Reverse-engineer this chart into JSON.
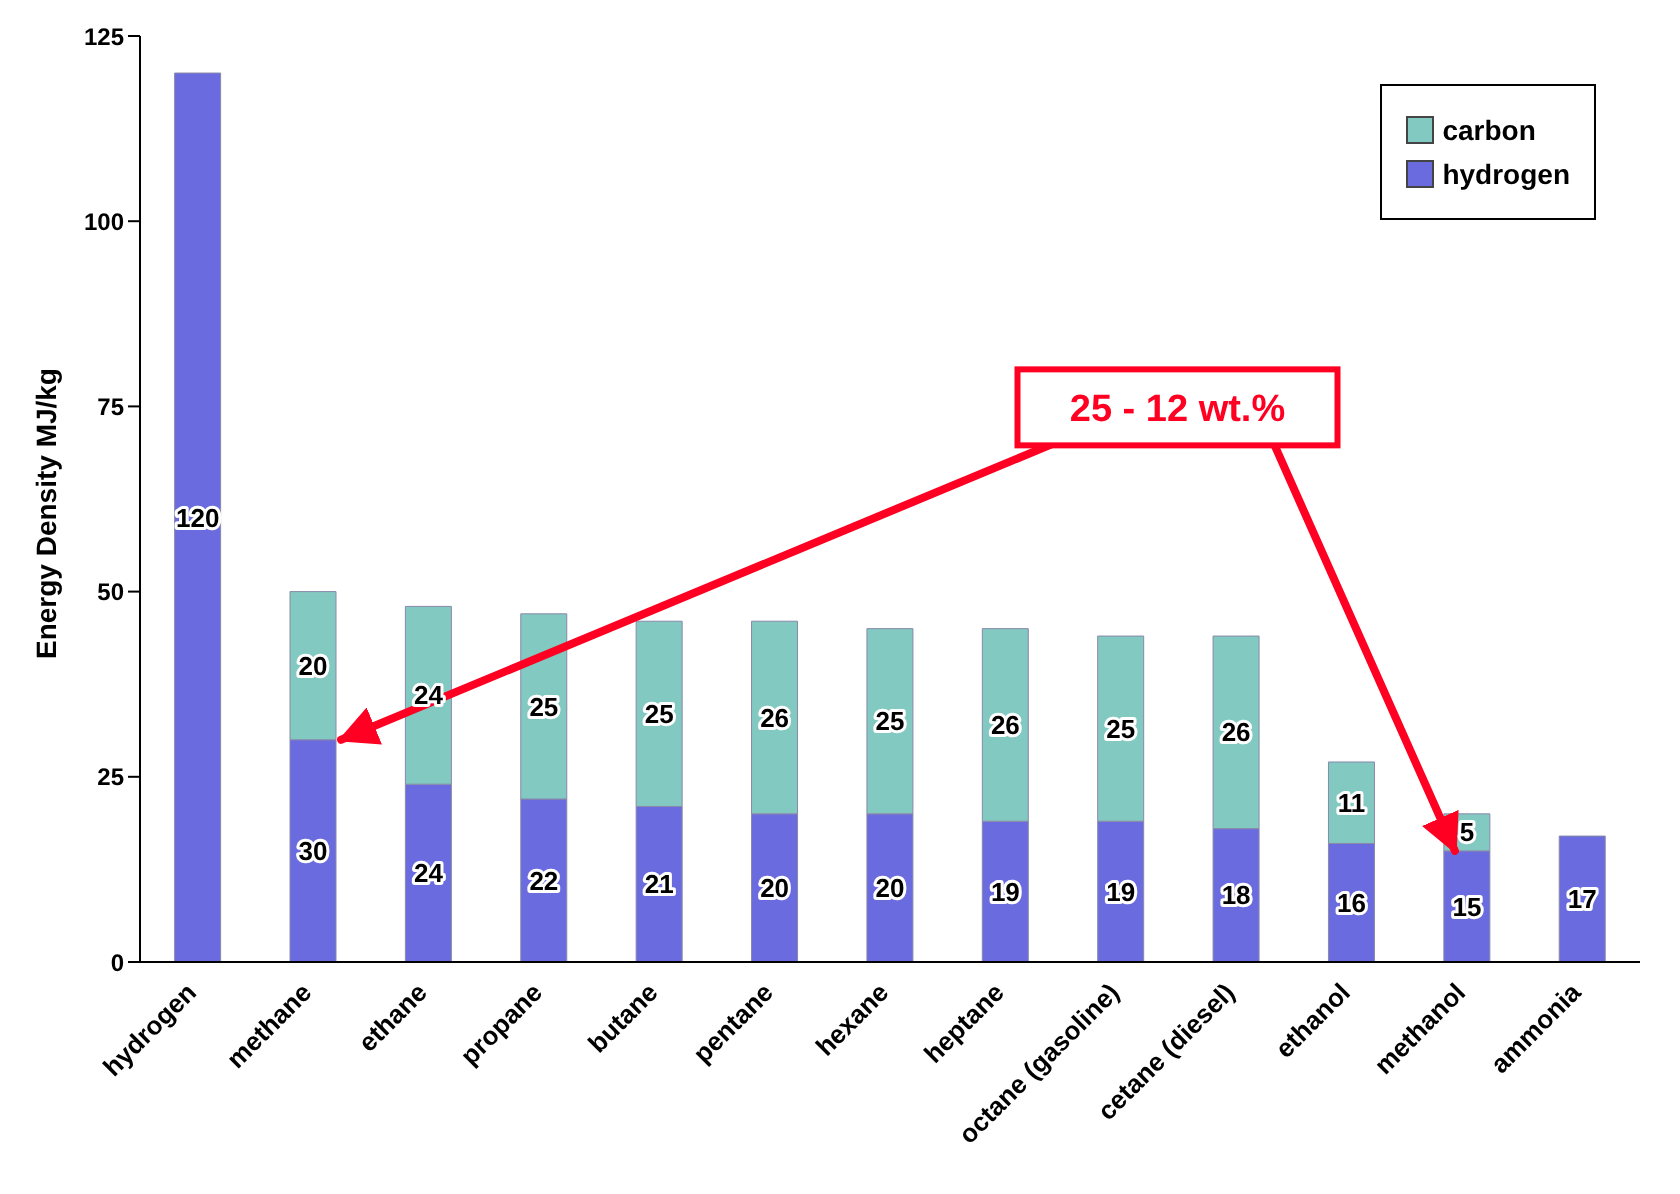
{
  "chart_data": {
    "type": "bar",
    "stacked": true,
    "ylabel": "Energy Density MJ/kg",
    "categories": [
      "hydrogen",
      "methane",
      "ethane",
      "propane",
      "butane",
      "pentane",
      "hexane",
      "heptane",
      "octane (gasoline)",
      "cetane (diesel)",
      "ethanol",
      "methanol",
      "ammonia"
    ],
    "series": [
      {
        "name": "hydrogen",
        "color": "#6b6be0",
        "values": [
          120,
          30,
          24,
          22,
          21,
          20,
          20,
          19,
          19,
          18,
          16,
          15,
          17
        ]
      },
      {
        "name": "carbon",
        "color": "#82c9c1",
        "values": [
          null,
          20,
          24,
          25,
          25,
          26,
          25,
          26,
          25,
          26,
          11,
          5,
          null
        ]
      }
    ],
    "ylim": [
      0,
      125
    ],
    "yticks": [
      0,
      25,
      50,
      75,
      100,
      125
    ],
    "grid": false,
    "legend": "top right",
    "data_labels": true,
    "annotations": [
      {
        "text": "25 - 12 wt.%",
        "x": "methanol",
        "y": 15
      }
    ]
  }
}
